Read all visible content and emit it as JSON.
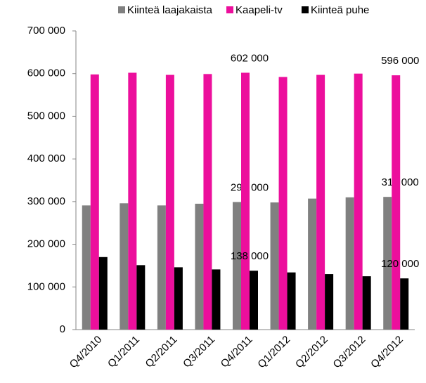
{
  "chart_data": {
    "type": "bar",
    "categories": [
      "Q4/2010",
      "Q1/2011",
      "Q2/2011",
      "Q3/2011",
      "Q4/2011",
      "Q1/2012",
      "Q2/2012",
      "Q3/2012",
      "Q4/2012"
    ],
    "series": [
      {
        "name": "Kiinteä laajakaista",
        "color": "#808080",
        "values": [
          291000,
          296000,
          291000,
          295000,
          299000,
          298000,
          307000,
          310000,
          311000
        ],
        "value_labels": [
          null,
          null,
          null,
          null,
          "299 000",
          null,
          null,
          null,
          "311 000"
        ]
      },
      {
        "name": "Kaapeli-tv",
        "color": "#ec0f9c",
        "values": [
          598000,
          602000,
          597000,
          599000,
          602000,
          592000,
          597000,
          600000,
          596000
        ],
        "value_labels": [
          null,
          null,
          null,
          null,
          "602 000",
          null,
          null,
          null,
          "596 000"
        ]
      },
      {
        "name": "Kiinteä puhe",
        "color": "#000000",
        "values": [
          170000,
          151000,
          146000,
          141000,
          138000,
          134000,
          130000,
          125000,
          120000
        ],
        "value_labels": [
          null,
          null,
          null,
          null,
          "138 000",
          null,
          null,
          null,
          "120 000"
        ]
      }
    ],
    "ylim": [
      0,
      700000
    ],
    "yticks": [
      0,
      {
        "value": 100000,
        "label": "100 000"
      },
      {
        "value": 200000,
        "label": "200 000"
      },
      {
        "value": 300000,
        "label": "300 000"
      },
      {
        "value": 400000,
        "label": "400 000"
      },
      {
        "value": 500000,
        "label": "500 000"
      },
      {
        "value": 600000,
        "label": "600 000"
      },
      {
        "value": 700000,
        "label": "700 000"
      }
    ],
    "grid": false,
    "legend": "top"
  }
}
